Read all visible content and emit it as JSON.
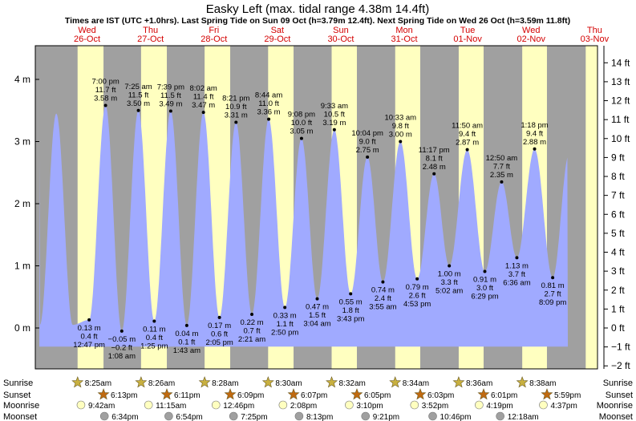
{
  "chart_data": {
    "type": "area",
    "title": "Easky Left (max. tidal range 4.38m 14.4ft)",
    "subtitle": "Times are IST (UTC +1.0hrs). Last Spring Tide on Sun 09 Oct (h=3.79m 12.4ft). Next Spring Tide on Wed 26 Oct (h=3.59m 11.8ft)",
    "days": [
      {
        "dow": "Wed",
        "date": "26-Oct"
      },
      {
        "dow": "Thu",
        "date": "27-Oct"
      },
      {
        "dow": "Fri",
        "date": "28-Oct"
      },
      {
        "dow": "Sat",
        "date": "29-Oct"
      },
      {
        "dow": "Sun",
        "date": "30-Oct"
      },
      {
        "dow": "Mon",
        "date": "31-Oct"
      },
      {
        "dow": "Tue",
        "date": "01-Nov"
      },
      {
        "dow": "Wed",
        "date": "02-Nov"
      },
      {
        "dow": "Thu",
        "date": "03-Nov"
      }
    ],
    "left_axis": {
      "unit": "m",
      "ylim": [
        -0.3,
        4.5
      ],
      "ticks": [
        0,
        1,
        2,
        3,
        4
      ],
      "tick_labels": [
        "0 m",
        "1 m",
        "2 m",
        "3 m",
        "4 m"
      ]
    },
    "right_axis": {
      "unit": "ft",
      "ticks": [
        -2,
        -1,
        0,
        1,
        2,
        3,
        4,
        5,
        6,
        7,
        8,
        9,
        10,
        11,
        12,
        13,
        14
      ],
      "tick_labels": [
        "−2 ft",
        "−1 ft",
        "0 ft",
        "1 ft",
        "2 ft",
        "3 ft",
        "4 ft",
        "5 ft",
        "6 ft",
        "7 ft",
        "8 ft",
        "9 ft",
        "10 ft",
        "11 ft",
        "12 ft",
        "13 ft",
        "14 ft"
      ]
    },
    "tides": [
      {
        "type": "high",
        "time": "7:00 pm",
        "ft": "11.7 ft",
        "m": "3.58 m",
        "h": 3.58,
        "day": 0,
        "hour": 19.0
      },
      {
        "type": "low",
        "time": "12:47 pm",
        "ft": "0.4 ft",
        "m": "0.13 m",
        "h": 0.13,
        "day": 0,
        "hour": 12.78
      },
      {
        "type": "low",
        "time": "1:08 am",
        "ft": "−0.2 ft",
        "m": "−0.05 m",
        "h": -0.05,
        "day": 1,
        "hour": 1.13
      },
      {
        "type": "high",
        "time": "7:25 am",
        "ft": "11.5 ft",
        "m": "3.50 m",
        "h": 3.5,
        "day": 1,
        "hour": 7.42
      },
      {
        "type": "low",
        "time": "1:25 pm",
        "ft": "0.4 ft",
        "m": "0.11 m",
        "h": 0.11,
        "day": 1,
        "hour": 13.42
      },
      {
        "type": "high",
        "time": "7:39 pm",
        "ft": "11.5 ft",
        "m": "3.49 m",
        "h": 3.49,
        "day": 1,
        "hour": 19.65
      },
      {
        "type": "low",
        "time": "1:43 am",
        "ft": "0.1 ft",
        "m": "0.04 m",
        "h": 0.04,
        "day": 2,
        "hour": 1.72
      },
      {
        "type": "high",
        "time": "8:02 am",
        "ft": "11.4 ft",
        "m": "3.47 m",
        "h": 3.47,
        "day": 2,
        "hour": 8.03
      },
      {
        "type": "low",
        "time": "2:05 pm",
        "ft": "0.6 ft",
        "m": "0.17 m",
        "h": 0.17,
        "day": 2,
        "hour": 14.08
      },
      {
        "type": "high",
        "time": "8:21 pm",
        "ft": "10.9 ft",
        "m": "3.31 m",
        "h": 3.31,
        "day": 2,
        "hour": 20.35
      },
      {
        "type": "low",
        "time": "2:21 am",
        "ft": "0.7 ft",
        "m": "0.22 m",
        "h": 0.22,
        "day": 3,
        "hour": 2.35
      },
      {
        "type": "high",
        "time": "8:44 am",
        "ft": "11.0 ft",
        "m": "3.36 m",
        "h": 3.36,
        "day": 3,
        "hour": 8.73
      },
      {
        "type": "low",
        "time": "2:50 pm",
        "ft": "1.1 ft",
        "m": "0.33 m",
        "h": 0.33,
        "day": 3,
        "hour": 14.83
      },
      {
        "type": "high",
        "time": "9:08 pm",
        "ft": "10.0 ft",
        "m": "3.05 m",
        "h": 3.05,
        "day": 3,
        "hour": 21.13
      },
      {
        "type": "low",
        "time": "3:04 am",
        "ft": "1.5 ft",
        "m": "0.47 m",
        "h": 0.47,
        "day": 4,
        "hour": 3.07
      },
      {
        "type": "high",
        "time": "9:33 am",
        "ft": "10.5 ft",
        "m": "3.19 m",
        "h": 3.19,
        "day": 4,
        "hour": 9.55
      },
      {
        "type": "low",
        "time": "3:43 pm",
        "ft": "1.8 ft",
        "m": "0.55 m",
        "h": 0.55,
        "day": 4,
        "hour": 15.72
      },
      {
        "type": "high",
        "time": "10:04 pm",
        "ft": "9.0 ft",
        "m": "2.75 m",
        "h": 2.75,
        "day": 4,
        "hour": 22.07
      },
      {
        "type": "low",
        "time": "3:55 am",
        "ft": "2.4 ft",
        "m": "0.74 m",
        "h": 0.74,
        "day": 5,
        "hour": 3.92
      },
      {
        "type": "high",
        "time": "10:33 am",
        "ft": "9.8 ft",
        "m": "3.00 m",
        "h": 3.0,
        "day": 5,
        "hour": 10.55
      },
      {
        "type": "low",
        "time": "4:53 pm",
        "ft": "2.6 ft",
        "m": "0.79 m",
        "h": 0.79,
        "day": 5,
        "hour": 16.88
      },
      {
        "type": "high",
        "time": "11:17 pm",
        "ft": "8.1 ft",
        "m": "2.48 m",
        "h": 2.48,
        "day": 5,
        "hour": 23.28
      },
      {
        "type": "low",
        "time": "5:02 am",
        "ft": "3.3 ft",
        "m": "1.00 m",
        "h": 1.0,
        "day": 6,
        "hour": 5.03
      },
      {
        "type": "high",
        "time": "11:50 am",
        "ft": "9.4 ft",
        "m": "2.87 m",
        "h": 2.87,
        "day": 6,
        "hour": 11.83
      },
      {
        "type": "low",
        "time": "6:29 pm",
        "ft": "3.0 ft",
        "m": "0.91 m",
        "h": 0.91,
        "day": 6,
        "hour": 18.48
      },
      {
        "type": "high",
        "time": "12:50 am",
        "ft": "7.7 ft",
        "m": "2.35 m",
        "h": 2.35,
        "day": 7,
        "hour": 0.83
      },
      {
        "type": "low",
        "time": "6:36 am",
        "ft": "3.7 ft",
        "m": "1.13 m",
        "h": 1.13,
        "day": 7,
        "hour": 6.6
      },
      {
        "type": "high",
        "time": "1:18 pm",
        "ft": "9.4 ft",
        "m": "2.88 m",
        "h": 2.88,
        "day": 7,
        "hour": 13.3
      },
      {
        "type": "low",
        "time": "8:09 pm",
        "ft": "2.7 ft",
        "m": "0.81 m",
        "h": 0.81,
        "day": 7,
        "hour": 20.15
      }
    ],
    "sunrise": [
      {
        "day": 0,
        "hour": 8.42,
        "time": "8:25am"
      },
      {
        "day": 1,
        "hour": 8.43,
        "time": "8:26am"
      },
      {
        "day": 2,
        "hour": 8.47,
        "time": "8:28am"
      },
      {
        "day": 3,
        "hour": 8.5,
        "time": "8:30am"
      },
      {
        "day": 4,
        "hour": 8.53,
        "time": "8:32am"
      },
      {
        "day": 5,
        "hour": 8.57,
        "time": "8:34am"
      },
      {
        "day": 6,
        "hour": 8.6,
        "time": "8:36am"
      },
      {
        "day": 7,
        "hour": 8.63,
        "time": "8:38am"
      }
    ],
    "sunset": [
      {
        "day": 0,
        "hour": 18.22,
        "time": "6:13pm"
      },
      {
        "day": 1,
        "hour": 18.18,
        "time": "6:11pm"
      },
      {
        "day": 2,
        "hour": 18.15,
        "time": "6:09pm"
      },
      {
        "day": 3,
        "hour": 18.12,
        "time": "6:07pm"
      },
      {
        "day": 4,
        "hour": 18.08,
        "time": "6:05pm"
      },
      {
        "day": 5,
        "hour": 18.05,
        "time": "6:03pm"
      },
      {
        "day": 6,
        "hour": 18.02,
        "time": "6:01pm"
      },
      {
        "day": 7,
        "hour": 17.98,
        "time": "5:59pm"
      }
    ],
    "moonrise": [
      {
        "day": 0,
        "hour": 9.7,
        "time": "9:42am"
      },
      {
        "day": 1,
        "hour": 11.25,
        "time": "11:15am"
      },
      {
        "day": 2,
        "hour": 12.77,
        "time": "12:46pm"
      },
      {
        "day": 3,
        "hour": 14.13,
        "time": "2:08pm"
      },
      {
        "day": 4,
        "hour": 15.17,
        "time": "3:10pm"
      },
      {
        "day": 5,
        "hour": 15.87,
        "time": "3:52pm"
      },
      {
        "day": 6,
        "hour": 16.32,
        "time": "4:19pm"
      },
      {
        "day": 7,
        "hour": 16.62,
        "time": "4:37pm"
      }
    ],
    "moonset": [
      {
        "day": 0,
        "hour": 18.57,
        "time": "6:34pm"
      },
      {
        "day": 1,
        "hour": 18.9,
        "time": "6:54pm"
      },
      {
        "day": 2,
        "hour": 19.42,
        "time": "7:25pm"
      },
      {
        "day": 3,
        "hour": 20.22,
        "time": "8:13pm"
      },
      {
        "day": 4,
        "hour": 21.35,
        "time": "9:21pm"
      },
      {
        "day": 5,
        "hour": 22.77,
        "time": "10:46pm"
      },
      {
        "day": 7,
        "hour": 0.3,
        "time": "12:18am"
      }
    ],
    "row_labels": {
      "sunrise": "Sunrise",
      "sunset": "Sunset",
      "moonrise": "Moonrise",
      "moonset": "Moonset"
    },
    "colors": {
      "night": "#a0a0a0",
      "day": "#ffffc0",
      "water": "#a0aaff",
      "sunrise_star": "#c8b040",
      "sunset_star": "#c06a10",
      "moonrise": "#ffffc0",
      "moonset": "#a0a0a0",
      "day_label": "#d40000"
    },
    "grid": false
  }
}
